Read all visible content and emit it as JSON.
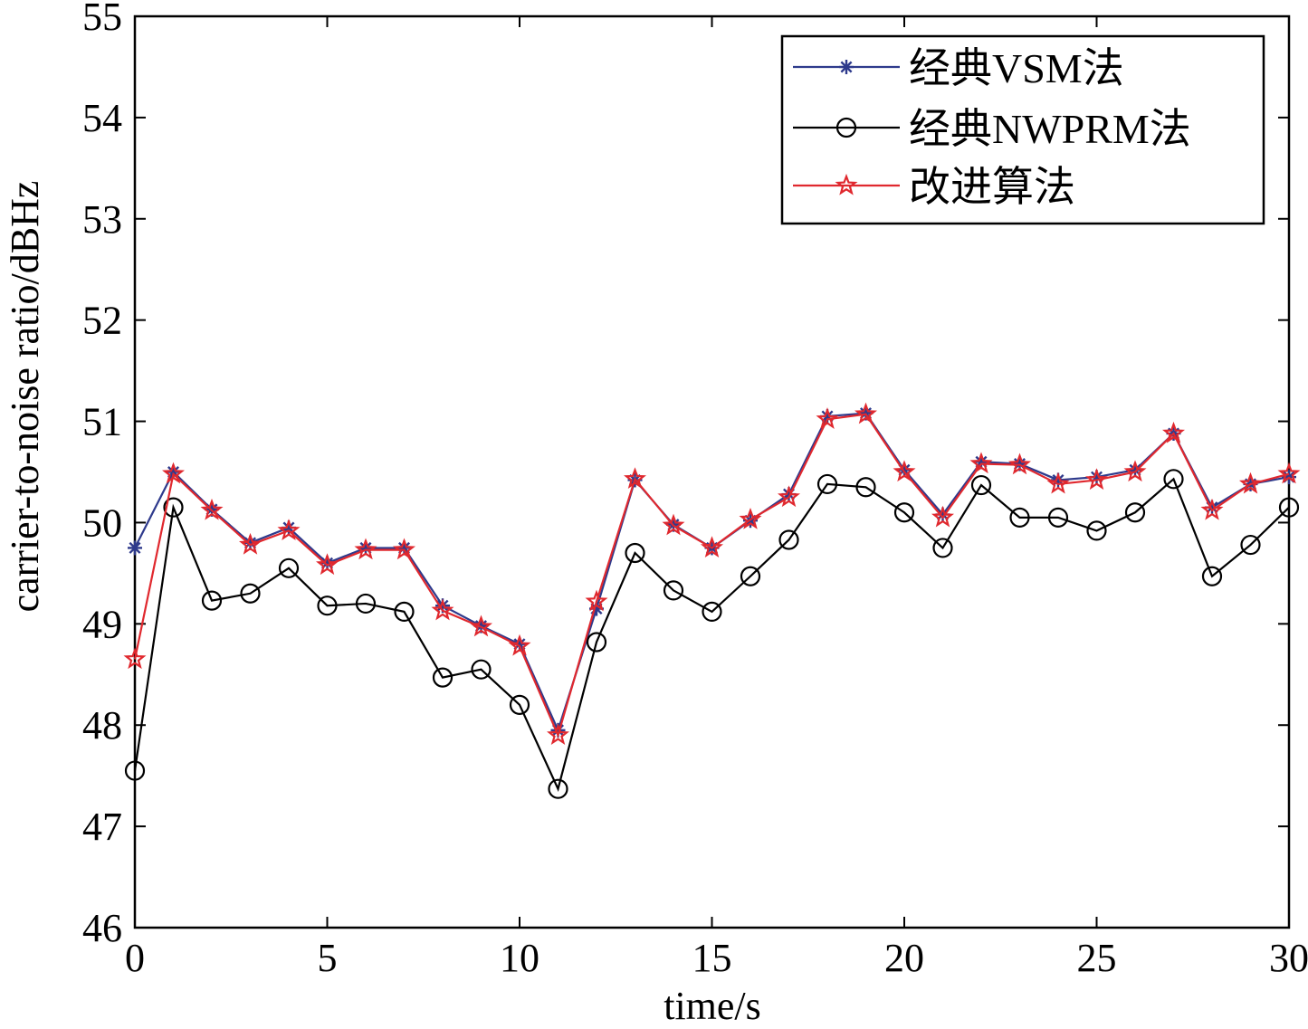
{
  "chart_data": {
    "type": "line",
    "title": "",
    "xlabel": "time/s",
    "ylabel": "carrier-to-noise ratio/dBHz",
    "xlim": [
      0,
      30
    ],
    "ylim": [
      46,
      55
    ],
    "xticks": [
      "0",
      "5",
      "10",
      "15",
      "20",
      "25",
      "30"
    ],
    "yticks": [
      "46",
      "47",
      "48",
      "49",
      "50",
      "51",
      "52",
      "53",
      "54",
      "55"
    ],
    "grid": false,
    "legend_position": "top-right",
    "x": [
      0,
      1,
      2,
      3,
      4,
      5,
      6,
      7,
      8,
      9,
      10,
      11,
      12,
      13,
      14,
      15,
      16,
      17,
      18,
      19,
      20,
      21,
      22,
      23,
      24,
      25,
      26,
      27,
      28,
      29,
      30
    ],
    "series": [
      {
        "name": "经典VSM法",
        "color": "#2e3a8c",
        "marker": "asterisk",
        "values": [
          49.75,
          50.5,
          50.13,
          49.8,
          49.95,
          49.6,
          49.75,
          49.75,
          49.18,
          48.98,
          48.8,
          47.95,
          49.15,
          50.42,
          49.98,
          49.75,
          50.02,
          50.28,
          51.05,
          51.08,
          50.52,
          50.08,
          50.6,
          50.58,
          50.42,
          50.45,
          50.52,
          50.88,
          50.15,
          50.38,
          50.45
        ]
      },
      {
        "name": "经典NWPRM法",
        "color": "#000000",
        "marker": "circle",
        "values": [
          47.55,
          50.15,
          49.23,
          49.3,
          49.55,
          49.18,
          49.2,
          49.12,
          48.47,
          48.55,
          48.2,
          47.37,
          48.82,
          49.7,
          49.33,
          49.12,
          49.47,
          49.83,
          50.38,
          50.35,
          50.1,
          49.75,
          50.37,
          50.05,
          50.05,
          49.92,
          50.1,
          50.43,
          49.47,
          49.78,
          50.15
        ]
      },
      {
        "name": "改进算法",
        "color": "#e0282e",
        "marker": "star",
        "values": [
          48.65,
          50.48,
          50.12,
          49.78,
          49.92,
          49.58,
          49.73,
          49.73,
          49.13,
          48.97,
          48.78,
          47.9,
          49.22,
          50.43,
          49.97,
          49.75,
          50.03,
          50.25,
          51.02,
          51.07,
          50.5,
          50.05,
          50.58,
          50.57,
          50.38,
          50.42,
          50.5,
          50.88,
          50.12,
          50.38,
          50.48
        ]
      }
    ]
  }
}
